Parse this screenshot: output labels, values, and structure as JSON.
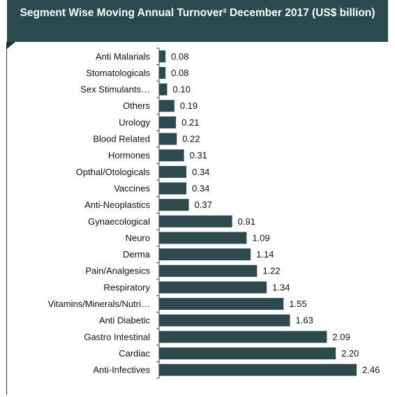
{
  "chart_data": {
    "type": "bar",
    "orientation": "horizontal",
    "title": "Segment Wise Moving Annual Turnover² December 2017 (US$ billion)",
    "categories": [
      "Anti Malarials",
      "Stomatologicals",
      "Sex Stimulants…",
      "Others",
      "Urology",
      "Blood Related",
      "Hormones",
      "Opthal/Otologicals",
      "Vaccines",
      "Anti-Neoplastics",
      "Gynaecological",
      "Neuro",
      "Derma",
      "Pain/Analgesics",
      "Respiratory",
      "Vitamins/Minerals/Nutri…",
      "Anti Diabetic",
      "Gastro Intestinal",
      "Cardiac",
      "Anti-Infectives"
    ],
    "values": [
      0.08,
      0.08,
      0.1,
      0.19,
      0.21,
      0.22,
      0.31,
      0.34,
      0.34,
      0.37,
      0.91,
      1.09,
      1.14,
      1.22,
      1.34,
      1.55,
      1.63,
      2.09,
      2.2,
      2.46
    ],
    "value_labels": [
      "0.08",
      "0.08",
      "0.10",
      "0.19",
      "0.21",
      "0.22",
      "0.31",
      "0.34",
      "0.34",
      "0.37",
      "0.91",
      "1.09",
      "1.14",
      "1.22",
      "1.34",
      "1.55",
      "1.63",
      "2.09",
      "2.20",
      "2.46"
    ],
    "color": "#2d4b4f"
  }
}
